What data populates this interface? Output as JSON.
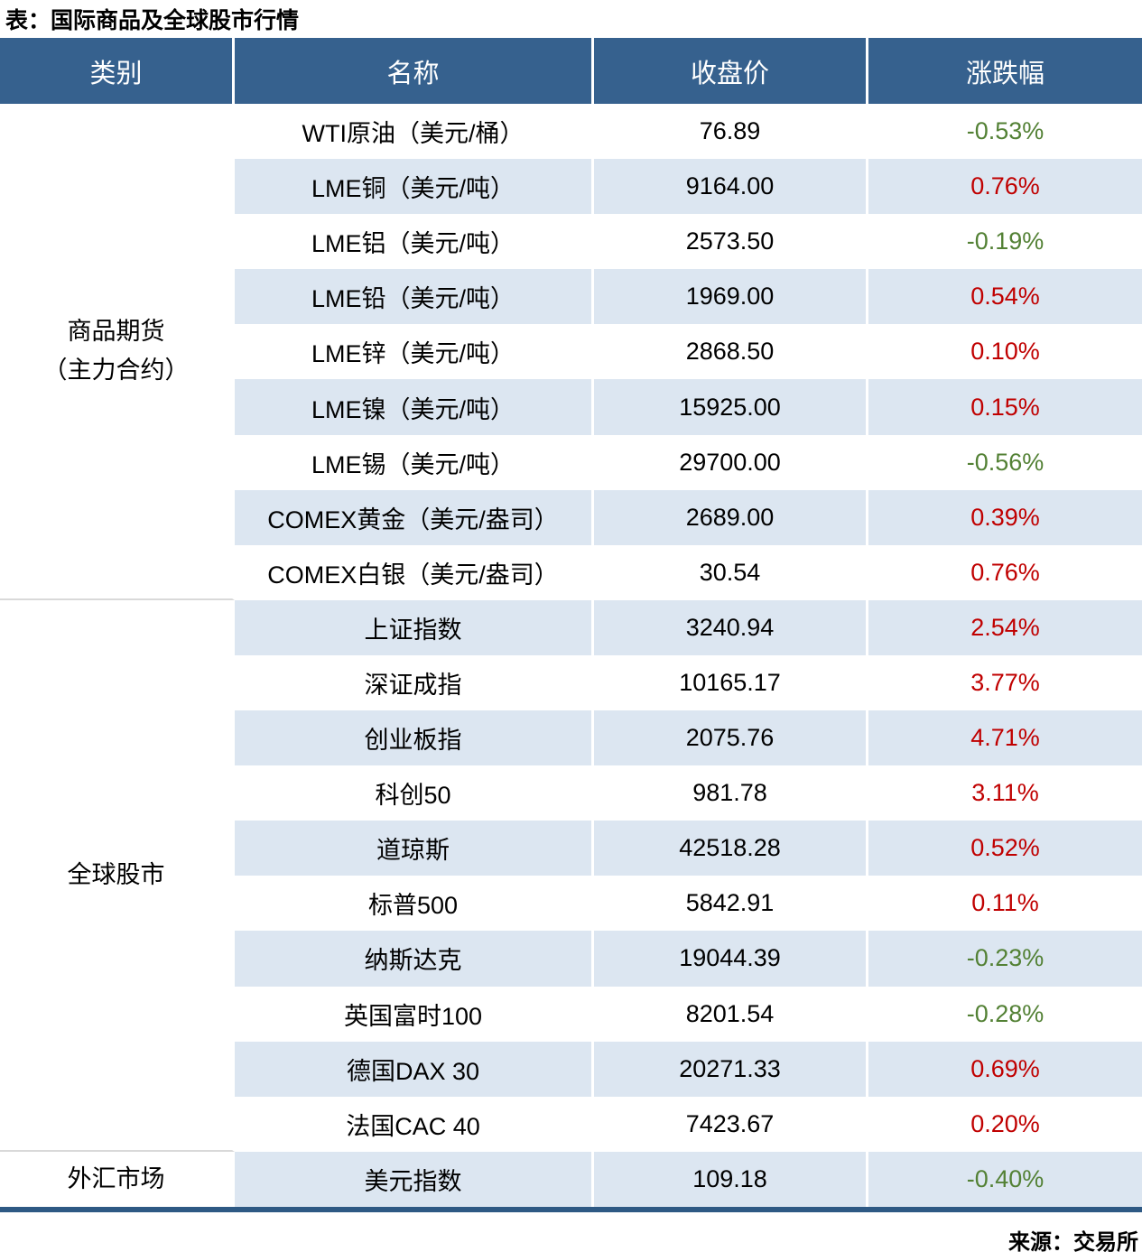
{
  "title": "表：国际商品及全球股市行情",
  "source": "来源：交易所",
  "colors": {
    "header_bg": "#36618e",
    "band_row_bg": "#dce6f1",
    "up_red": "#c00000",
    "down_green": "#538135",
    "bottom_border": "#2e5984",
    "category_separator": "#d9d9d9"
  },
  "chart_data": {
    "type": "table",
    "title": "表：国际商品及全球股市行情",
    "source": "来源：交易所",
    "columns": [
      "类别",
      "名称",
      "收盘价",
      "涨跌幅"
    ],
    "groups": [
      {
        "category": [
          "商品期货",
          "（主力合约）"
        ],
        "rows": [
          {
            "name": "WTI原油（美元/桶）",
            "close": "76.89",
            "change": "-0.53%"
          },
          {
            "name": "LME铜（美元/吨）",
            "close": "9164.00",
            "change": "0.76%"
          },
          {
            "name": "LME铝（美元/吨）",
            "close": "2573.50",
            "change": "-0.19%"
          },
          {
            "name": "LME铅（美元/吨）",
            "close": "1969.00",
            "change": "0.54%"
          },
          {
            "name": "LME锌（美元/吨）",
            "close": "2868.50",
            "change": "0.10%"
          },
          {
            "name": "LME镍（美元/吨）",
            "close": "15925.00",
            "change": "0.15%"
          },
          {
            "name": "LME锡（美元/吨）",
            "close": "29700.00",
            "change": "-0.56%"
          },
          {
            "name": "COMEX黄金（美元/盎司）",
            "close": "2689.00",
            "change": "0.39%"
          },
          {
            "name": "COMEX白银（美元/盎司）",
            "close": "30.54",
            "change": "0.76%"
          }
        ]
      },
      {
        "category": [
          "全球股市"
        ],
        "rows": [
          {
            "name": "上证指数",
            "close": "3240.94",
            "change": "2.54%"
          },
          {
            "name": "深证成指",
            "close": "10165.17",
            "change": "3.77%"
          },
          {
            "name": "创业板指",
            "close": "2075.76",
            "change": "4.71%"
          },
          {
            "name": "科创50",
            "close": "981.78",
            "change": "3.11%"
          },
          {
            "name": "道琼斯",
            "close": "42518.28",
            "change": "0.52%"
          },
          {
            "name": "标普500",
            "close": "5842.91",
            "change": "0.11%"
          },
          {
            "name": "纳斯达克",
            "close": "19044.39",
            "change": "-0.23%"
          },
          {
            "name": "英国富时100",
            "close": "8201.54",
            "change": "-0.28%"
          },
          {
            "name": "德国DAX 30",
            "close": "20271.33",
            "change": "0.69%"
          },
          {
            "name": "法国CAC 40",
            "close": "7423.67",
            "change": "0.20%"
          }
        ]
      },
      {
        "category": [
          "外汇市场"
        ],
        "rows": [
          {
            "name": "美元指数",
            "close": "109.18",
            "change": "-0.40%"
          }
        ]
      }
    ]
  }
}
